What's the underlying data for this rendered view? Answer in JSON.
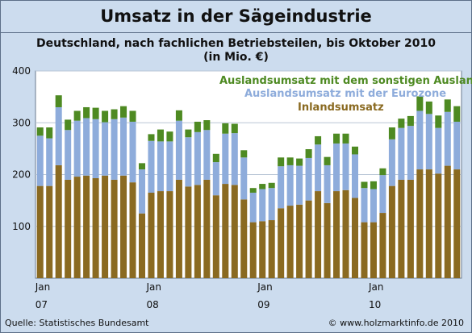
{
  "chart_data": {
    "type": "bar",
    "stacked": true,
    "title": "Umsatz in der Sägeindustrie",
    "subtitle": [
      "Deutschland, nach fachlichen Betriebsteilen, bis Oktober 2010",
      "(in Mio. €)"
    ],
    "ylim": [
      0,
      400
    ],
    "yticks": [
      100,
      200,
      300,
      400
    ],
    "grid": true,
    "legend_placement": "top-right",
    "x_tick_labels": [
      {
        "index": 0,
        "month": "Jan",
        "year": "07"
      },
      {
        "index": 12,
        "month": "Jan",
        "year": "08"
      },
      {
        "index": 24,
        "month": "Jan",
        "year": "09"
      },
      {
        "index": 36,
        "month": "Jan",
        "year": "10"
      }
    ],
    "series": [
      {
        "name": "Inlandsumsatz",
        "color": "#8a6a21",
        "values": [
          178,
          178,
          218,
          190,
          196,
          198,
          193,
          198,
          190,
          198,
          185,
          125,
          165,
          168,
          168,
          190,
          177,
          180,
          190,
          160,
          182,
          180,
          152,
          108,
          110,
          112,
          135,
          140,
          142,
          150,
          168,
          145,
          168,
          170,
          155,
          108,
          108,
          126,
          178,
          190,
          190,
          210,
          210,
          202,
          217,
          210
        ]
      },
      {
        "name": "Auslandsumsatz mit der Eurozone",
        "color": "#8eacdb",
        "values": [
          97,
          92,
          112,
          96,
          108,
          111,
          114,
          103,
          117,
          112,
          117,
          85,
          100,
          96,
          96,
          114,
          95,
          102,
          96,
          64,
          97,
          100,
          81,
          57,
          62,
          62,
          81,
          78,
          75,
          82,
          90,
          73,
          92,
          90,
          84,
          66,
          64,
          73,
          90,
          100,
          104,
          113,
          107,
          88,
          104,
          92
        ]
      },
      {
        "name": "Auslandsumsatz mit dem sonstigen Ausland",
        "color": "#4e8a22",
        "values": [
          16,
          21,
          23,
          20,
          19,
          21,
          22,
          22,
          19,
          22,
          21,
          12,
          13,
          23,
          19,
          20,
          15,
          20,
          19,
          16,
          20,
          18,
          14,
          9,
          10,
          10,
          17,
          15,
          14,
          17,
          16,
          16,
          19,
          19,
          15,
          12,
          15,
          13,
          23,
          18,
          19,
          28,
          24,
          24,
          24,
          30
        ]
      }
    ]
  },
  "footer": {
    "source": "Quelle: Statistisches Bundesamt",
    "copyright": "© www.holzmarktinfo.de 2010"
  }
}
